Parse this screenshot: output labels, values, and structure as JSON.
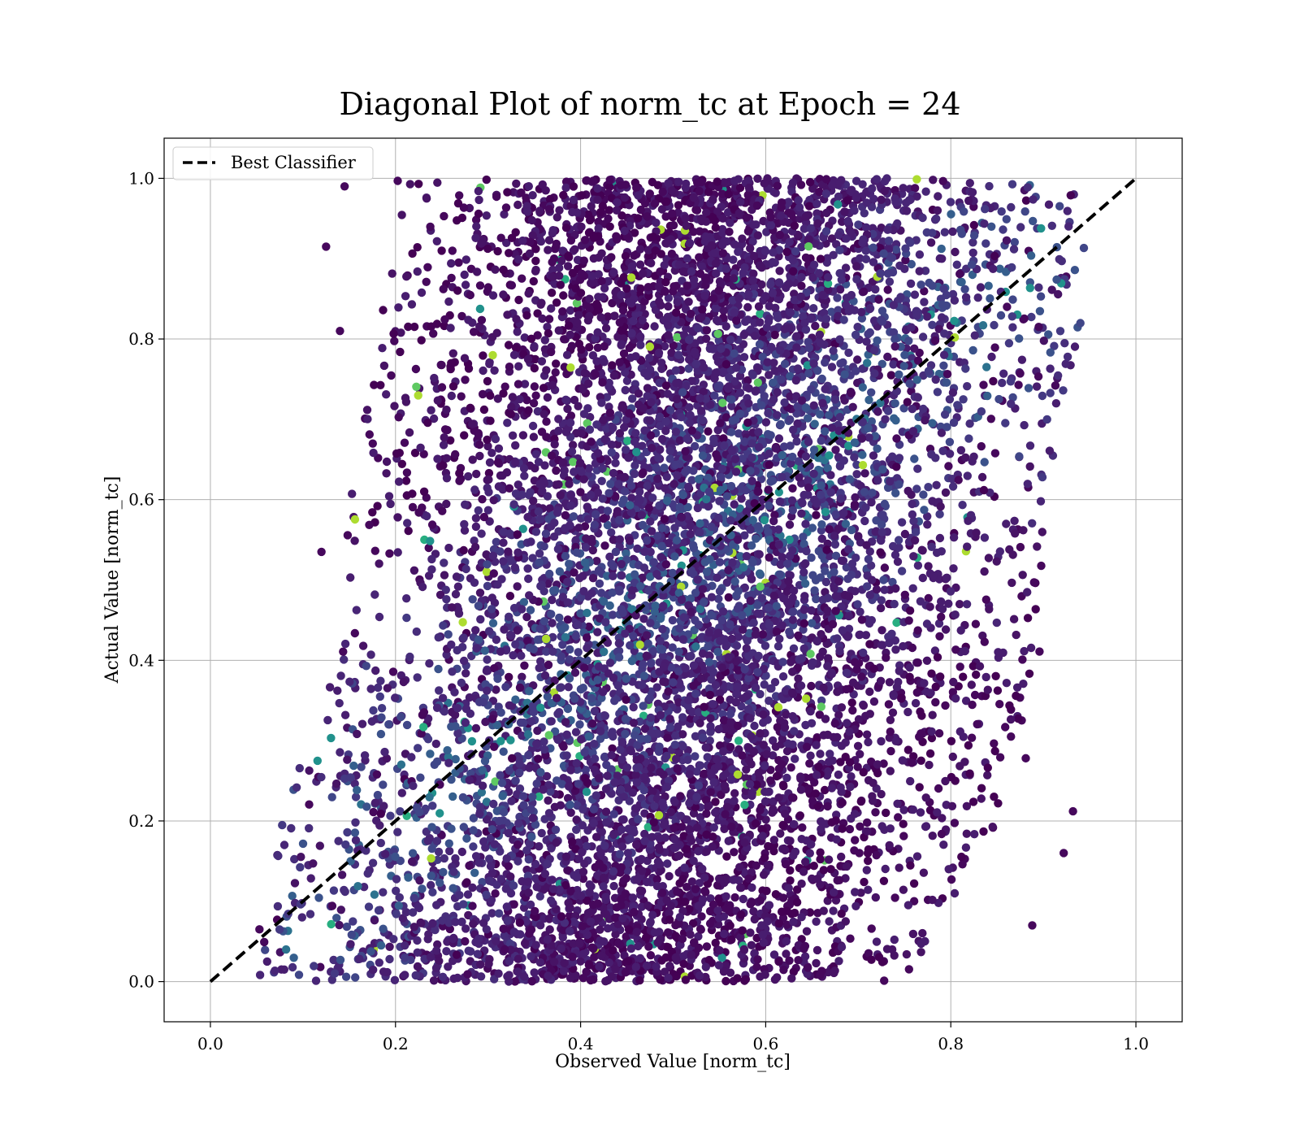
{
  "chart_data": {
    "type": "scatter",
    "title": "Diagonal Plot of norm_tc at Epoch = 24",
    "xlabel": "Observed Value [norm_tc]",
    "ylabel": "Actual Value [norm_tc]",
    "xlim": [
      -0.05,
      1.05
    ],
    "ylim": [
      -0.05,
      1.05
    ],
    "x_ticks": [
      0.0,
      0.2,
      0.4,
      0.6,
      0.8,
      1.0
    ],
    "y_ticks": [
      0.0,
      0.2,
      0.4,
      0.6,
      0.8,
      1.0
    ],
    "x_tick_labels": [
      "0.0",
      "0.2",
      "0.4",
      "0.6",
      "0.8",
      "1.0"
    ],
    "y_tick_labels": [
      "0.0",
      "0.2",
      "0.4",
      "0.6",
      "0.8",
      "1.0"
    ],
    "grid": true,
    "legend": {
      "placement": "top-left",
      "entries": [
        "Best Classifier"
      ]
    },
    "reference_line": {
      "name": "Best Classifier",
      "style": "dashed",
      "color": "#000000",
      "x": [
        0.0,
        1.0
      ],
      "y": [
        0.0,
        1.0
      ]
    },
    "colormap": "viridis",
    "scatter_colors": [
      "#440154",
      "#46085c",
      "#471365",
      "#481d6f",
      "#482576",
      "#472d7b",
      "#443983",
      "#404688",
      "#3b528b",
      "#355f8d",
      "#2c728e",
      "#21918c",
      "#28ae80",
      "#5ec962",
      "#addc30"
    ],
    "scatter_summary": {
      "approx_points": 65000,
      "actual_range": [
        0.0,
        1.0
      ],
      "observed_range": [
        0.05,
        0.95
      ],
      "observed_range_at_actual": [
        {
          "actual": 0.0,
          "observed": [
            0.05,
            0.75
          ]
        },
        {
          "actual": 0.2,
          "observed": [
            0.07,
            0.85
          ]
        },
        {
          "actual": 0.4,
          "observed": [
            0.13,
            0.9
          ]
        },
        {
          "actual": 0.6,
          "observed": [
            0.15,
            0.9
          ]
        },
        {
          "actual": 0.8,
          "observed": [
            0.18,
            0.94
          ]
        },
        {
          "actual": 1.0,
          "observed": [
            0.2,
            0.95
          ]
        }
      ]
    },
    "sample_points": [
      {
        "x": 0.053,
        "y": 0.065
      },
      {
        "x": 0.12,
        "y": 0.535
      },
      {
        "x": 0.14,
        "y": 0.81
      },
      {
        "x": 0.145,
        "y": 0.99
      },
      {
        "x": 0.125,
        "y": 0.915
      },
      {
        "x": 0.705,
        "y": 0.643
      },
      {
        "x": 0.89,
        "y": 0.497
      },
      {
        "x": 0.932,
        "y": 0.212
      },
      {
        "x": 0.922,
        "y": 0.16
      },
      {
        "x": 0.881,
        "y": 0.278
      },
      {
        "x": 0.888,
        "y": 0.07
      },
      {
        "x": 0.865,
        "y": 0.305
      },
      {
        "x": 0.913,
        "y": 0.742
      },
      {
        "x": 0.895,
        "y": 0.815
      }
    ]
  }
}
